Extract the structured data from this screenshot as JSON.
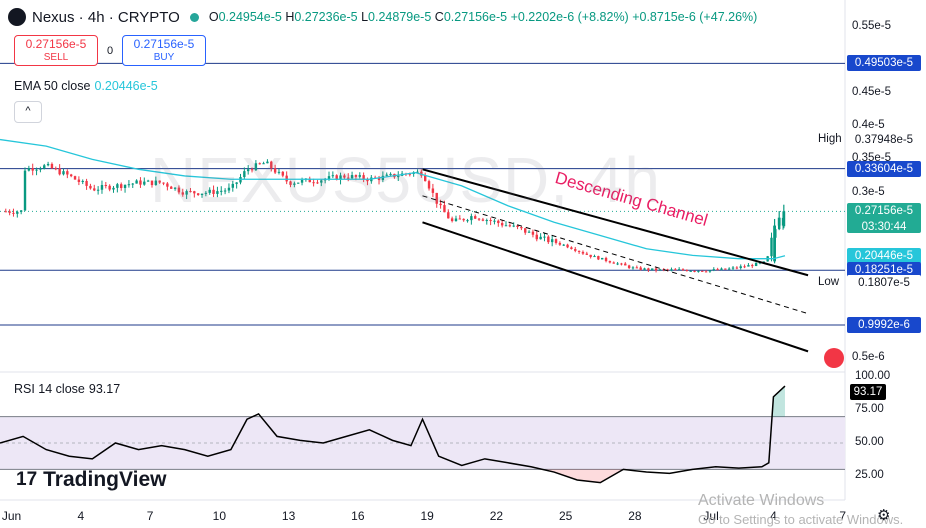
{
  "header": {
    "title": "Nexus · 4h · CRYPTO",
    "ohlc": [
      {
        "k": "O",
        "v": "0.24954e-5"
      },
      {
        "k": "H",
        "v": "0.27236e-5"
      },
      {
        "k": "L",
        "v": "0.24879e-5"
      },
      {
        "k": "C",
        "v": "0.27156e-5"
      }
    ],
    "change": "+0.2202e-6 (+8.82%)",
    "change2": "+0.8715e-6 (+47.26%)"
  },
  "trade": {
    "sell_price": "0.27156e-5",
    "sell_label": "SELL",
    "spread": "0",
    "buy_price": "0.27156e-5",
    "buy_label": "BUY"
  },
  "ema": {
    "label": "EMA 50 close",
    "value": "0.20446e-5",
    "collapse": "^"
  },
  "rsi": {
    "label": "RSI 14 close",
    "value": "93.17"
  },
  "watermark": "NEXUS5USD, 4h",
  "brand": {
    "mark": "17",
    "name": "TradingView"
  },
  "windows_notice": {
    "line1": "Activate Windows",
    "line2": "Go to Settings to activate Windows."
  },
  "annotation": "Descending Channel",
  "colors": {
    "up": "#089981",
    "down": "#f23645",
    "ema": "#26c6da",
    "level": "#1e3a8a",
    "label_blue": "#1848cc",
    "price_green": "#22ab94",
    "rsi_line": "#000000",
    "rsi_band": "#ede7f6"
  },
  "price_axis": {
    "ticks": [
      "0.55e-5",
      "0.45e-5",
      "0.4e-5",
      "0.35e-5",
      "0.3e-5",
      "0.5e-6"
    ],
    "labels": [
      {
        "name": "level-049503",
        "text": "0.49503e-5",
        "style": "blue"
      },
      {
        "name": "high-label",
        "text": "0.37948e-5",
        "prefix": "High",
        "style": "plain"
      },
      {
        "name": "level-033604",
        "text": "0.33604e-5",
        "style": "blue"
      },
      {
        "name": "price-label",
        "text": "0.27156e-5",
        "sub": "03:30:44",
        "style": "green"
      },
      {
        "name": "ema-label",
        "text": "0.20446e-5",
        "style": "teal"
      },
      {
        "name": "level-018251",
        "text": "0.18251e-5",
        "style": "blue"
      },
      {
        "name": "low-label",
        "text": "0.1807e-5",
        "prefix": "Low",
        "style": "plain"
      },
      {
        "name": "level-09992",
        "text": "0.9992e-6",
        "style": "blue"
      }
    ]
  },
  "rsi_axis": {
    "ticks": [
      "100.00",
      "75.00",
      "50.00",
      "25.00"
    ],
    "current": "93.17"
  },
  "x_axis": {
    "ticks": [
      "Jun",
      "4",
      "7",
      "10",
      "13",
      "16",
      "19",
      "22",
      "25",
      "28",
      "Jul",
      "4",
      "7"
    ]
  },
  "chart_data": {
    "type": "candlestick",
    "title": "Nexus · 4h · CRYPTO",
    "series_name": "Nexus",
    "x_range": [
      "Jun 1",
      "Jul 7"
    ],
    "y_unit": "e-5",
    "x_ticks": [
      "Jun",
      "4",
      "7",
      "10",
      "13",
      "16",
      "19",
      "22",
      "25",
      "28",
      "Jul",
      "4",
      "7"
    ],
    "ohlc_last": {
      "open": 0.24954,
      "high": 0.27236,
      "low": 0.24879,
      "close": 0.27156
    },
    "ohlc_path": [
      {
        "day": 1,
        "close": 0.335
      },
      {
        "day": 2,
        "close": 0.34
      },
      {
        "day": 3,
        "close": 0.325
      },
      {
        "day": 4,
        "close": 0.305
      },
      {
        "day": 5,
        "close": 0.31
      },
      {
        "day": 6,
        "close": 0.315
      },
      {
        "day": 7,
        "close": 0.315
      },
      {
        "day": 8,
        "close": 0.3
      },
      {
        "day": 9,
        "close": 0.3
      },
      {
        "day": 10,
        "close": 0.305
      },
      {
        "day": 10.7,
        "close": 0.335
      },
      {
        "day": 11.5,
        "close": 0.345
      },
      {
        "day": 12.5,
        "close": 0.315
      },
      {
        "day": 14,
        "close": 0.32
      },
      {
        "day": 15,
        "close": 0.325
      },
      {
        "day": 16,
        "close": 0.32
      },
      {
        "day": 17,
        "close": 0.325
      },
      {
        "day": 17.8,
        "close": 0.33
      },
      {
        "day": 18.3,
        "close": 0.33
      },
      {
        "day": 19,
        "close": 0.28
      },
      {
        "day": 19.6,
        "close": 0.255
      },
      {
        "day": 20.5,
        "close": 0.265
      },
      {
        "day": 21.5,
        "close": 0.255
      },
      {
        "day": 22.5,
        "close": 0.245
      },
      {
        "day": 23.5,
        "close": 0.23
      },
      {
        "day": 24.5,
        "close": 0.22
      },
      {
        "day": 25.5,
        "close": 0.205
      },
      {
        "day": 26.5,
        "close": 0.195
      },
      {
        "day": 27.5,
        "close": 0.185
      },
      {
        "day": 28.5,
        "close": 0.183
      },
      {
        "day": 29.5,
        "close": 0.183
      },
      {
        "day": 30.5,
        "close": 0.182
      },
      {
        "day": 31.5,
        "close": 0.184
      },
      {
        "day": 32.5,
        "close": 0.19
      },
      {
        "day": 33.2,
        "close": 0.195
      },
      {
        "day": 33.5,
        "close": 0.24
      },
      {
        "day": 33.75,
        "close": 0.255
      },
      {
        "day": 34,
        "close": 0.27156
      }
    ],
    "ema50": [
      {
        "day": 0,
        "value": 0.38
      },
      {
        "day": 2,
        "value": 0.37
      },
      {
        "day": 4,
        "value": 0.35
      },
      {
        "day": 6,
        "value": 0.335
      },
      {
        "day": 8,
        "value": 0.325
      },
      {
        "day": 10,
        "value": 0.32
      },
      {
        "day": 12,
        "value": 0.32
      },
      {
        "day": 14,
        "value": 0.32
      },
      {
        "day": 16,
        "value": 0.32
      },
      {
        "day": 18,
        "value": 0.33
      },
      {
        "day": 20,
        "value": 0.31
      },
      {
        "day": 22,
        "value": 0.28
      },
      {
        "day": 24,
        "value": 0.255
      },
      {
        "day": 26,
        "value": 0.235
      },
      {
        "day": 28,
        "value": 0.215
      },
      {
        "day": 30,
        "value": 0.205
      },
      {
        "day": 32,
        "value": 0.2
      },
      {
        "day": 33.5,
        "value": 0.2
      },
      {
        "day": 34,
        "value": 0.20446
      }
    ],
    "high": 0.37948,
    "low": 0.1807,
    "horizontal_levels": [
      0.49503,
      0.33604,
      0.18251,
      0.09992
    ],
    "channel": {
      "upper": [
        {
          "day": 18.3,
          "value": 0.335
        },
        {
          "day": 35,
          "value": 0.175
        }
      ],
      "lower": [
        {
          "day": 18.3,
          "value": 0.255
        },
        {
          "day": 35,
          "value": 0.06
        }
      ],
      "mid": [
        {
          "day": 18.3,
          "value": 0.295
        },
        {
          "day": 35,
          "value": 0.117
        }
      ],
      "label": "Descending Channel"
    },
    "rsi": {
      "name": "RSI 14",
      "value": 93.17,
      "upper": 70,
      "lower": 30,
      "points": [
        {
          "day": 0,
          "value": 50
        },
        {
          "day": 1,
          "value": 55
        },
        {
          "day": 2,
          "value": 45
        },
        {
          "day": 3,
          "value": 40
        },
        {
          "day": 4,
          "value": 38
        },
        {
          "day": 5,
          "value": 50
        },
        {
          "day": 6,
          "value": 45
        },
        {
          "day": 7,
          "value": 48
        },
        {
          "day": 8,
          "value": 45
        },
        {
          "day": 9,
          "value": 40
        },
        {
          "day": 10,
          "value": 45
        },
        {
          "day": 10.7,
          "value": 68
        },
        {
          "day": 11.2,
          "value": 72
        },
        {
          "day": 12,
          "value": 55
        },
        {
          "day": 13,
          "value": 52
        },
        {
          "day": 14,
          "value": 50
        },
        {
          "day": 15,
          "value": 55
        },
        {
          "day": 16,
          "value": 60
        },
        {
          "day": 17,
          "value": 52
        },
        {
          "day": 17.8,
          "value": 48
        },
        {
          "day": 18.3,
          "value": 68
        },
        {
          "day": 19,
          "value": 40
        },
        {
          "day": 20,
          "value": 33
        },
        {
          "day": 21,
          "value": 38
        },
        {
          "day": 22,
          "value": 35
        },
        {
          "day": 23,
          "value": 32
        },
        {
          "day": 24,
          "value": 28
        },
        {
          "day": 25,
          "value": 22
        },
        {
          "day": 26,
          "value": 20
        },
        {
          "day": 27,
          "value": 30
        },
        {
          "day": 28,
          "value": 28
        },
        {
          "day": 29,
          "value": 27
        },
        {
          "day": 30,
          "value": 30
        },
        {
          "day": 31,
          "value": 32
        },
        {
          "day": 32,
          "value": 31
        },
        {
          "day": 33,
          "value": 32
        },
        {
          "day": 33.3,
          "value": 35
        },
        {
          "day": 33.5,
          "value": 85
        },
        {
          "day": 34,
          "value": 93.17
        }
      ]
    }
  }
}
